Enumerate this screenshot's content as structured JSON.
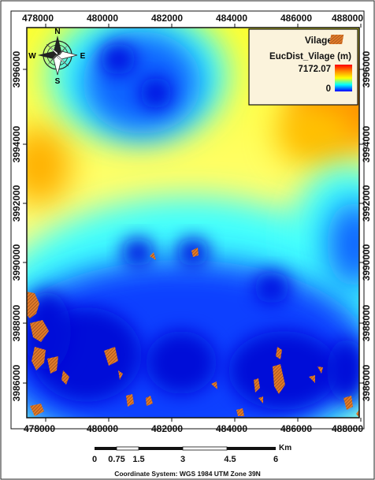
{
  "map": {
    "x_ticks": [
      "478000",
      "480000",
      "482000",
      "484000",
      "486000",
      "488000"
    ],
    "y_ticks": [
      "3996000",
      "3994000",
      "3992000",
      "3990000",
      "3988000",
      "3986000"
    ]
  },
  "north_arrow": {
    "n": "N",
    "s": "S",
    "e": "E",
    "w": "W"
  },
  "legend": {
    "layer_label": "Vilage",
    "raster_title": "EucDist_Vilage (m)",
    "max_value": "7172.07",
    "min_value": "0",
    "ramp_colors": [
      "#ff0000",
      "#ff8c00",
      "#ffff00",
      "#00ffff",
      "#0000ff"
    ],
    "village_color": "#e07a2a"
  },
  "scale_bar": {
    "labels": [
      "0",
      "0.75",
      "1.5",
      "3",
      "4.5",
      "6"
    ],
    "unit": "Km"
  },
  "footer": {
    "coordinate_system": "Coordinate System: WGS 1984 UTM Zone 39N"
  }
}
